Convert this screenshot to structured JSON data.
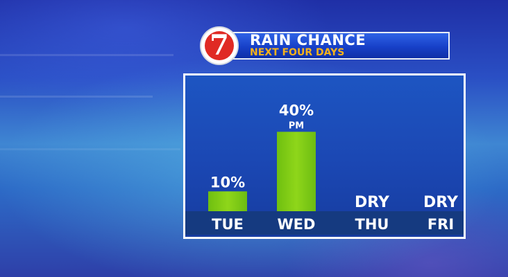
{
  "header": {
    "title": "RAIN CHANCE",
    "subtitle": "NEXT FOUR DAYS",
    "logo_text": "7"
  },
  "colors": {
    "bar": "#8fd61a",
    "panel_bg": "#1b4ab5",
    "axis_band": "#153a80",
    "title_text": "#ffffff",
    "subtitle_text": "#f7b21a",
    "logo_red": "#e02a24"
  },
  "chart_data": {
    "type": "bar",
    "categories": [
      "TUE",
      "WED",
      "THU",
      "FRI"
    ],
    "values": [
      10,
      40,
      0,
      0
    ],
    "value_labels": [
      "10%",
      "40%",
      "DRY",
      "DRY"
    ],
    "sub_labels": [
      "",
      "PM",
      "",
      ""
    ],
    "title": "RAIN CHANCE",
    "subtitle": "NEXT FOUR DAYS",
    "ylim": [
      0,
      60
    ],
    "grid": false
  }
}
